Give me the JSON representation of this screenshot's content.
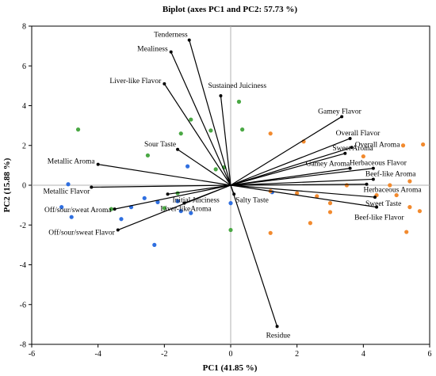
{
  "chart_data": {
    "type": "scatter",
    "title": "Biplot (axes PC1 and PC2: 57.73 %)",
    "xlabel": "PC1 (41.85 %)",
    "ylabel": "PC2 (15.88 %)",
    "xlim": [
      -6,
      6
    ],
    "ylim": [
      -8,
      8
    ],
    "xticks": [
      -6,
      -4,
      -2,
      0,
      2,
      4,
      6
    ],
    "yticks": [
      -8,
      -6,
      -4,
      -2,
      0,
      2,
      4,
      6,
      8
    ],
    "grid": false,
    "legend": "none",
    "colors": {
      "vector": "#000000",
      "blue": "#2f6fe0",
      "green": "#4aa844",
      "orange": "#f28a2e",
      "zero_line": "#b0b0b0"
    },
    "vectors": [
      {
        "label": "Tenderness",
        "x": -1.25,
        "y": 7.3
      },
      {
        "label": "Mealiness",
        "x": -1.8,
        "y": 6.7
      },
      {
        "label": "Liver-like Flavor",
        "x": -2.0,
        "y": 5.1
      },
      {
        "label": "Sustained Juiciness",
        "x": -0.3,
        "y": 4.5
      },
      {
        "label": "Sour Taste",
        "x": -1.6,
        "y": 1.8
      },
      {
        "label": "Metallic Aroma",
        "x": -4.0,
        "y": 1.05
      },
      {
        "label": "Metallic Flavor",
        "x": -4.2,
        "y": -0.1
      },
      {
        "label": "Initial Juiciness",
        "x": -1.9,
        "y": -0.45
      },
      {
        "label": "Liver-likeAroma",
        "x": -1.4,
        "y": -0.9
      },
      {
        "label": "Off/sour/sweat Aroma",
        "x": -3.5,
        "y": -1.2
      },
      {
        "label": "Off/sour/sweat Flavor",
        "x": -3.4,
        "y": -2.25
      },
      {
        "label": "Salty Taste",
        "x": 0.1,
        "y": -0.45
      },
      {
        "label": "Residue",
        "x": 1.4,
        "y": -7.1
      },
      {
        "label": "Gamey Flavor",
        "x": 3.35,
        "y": 3.45
      },
      {
        "label": "Overall Flavor",
        "x": 3.6,
        "y": 2.35
      },
      {
        "label": "Overall Aroma",
        "x": 3.65,
        "y": 1.9
      },
      {
        "label": "Sweet Aroma",
        "x": 3.45,
        "y": 1.6
      },
      {
        "label": "Gamey Aroma",
        "x": 3.6,
        "y": 0.85
      },
      {
        "label": "Herbaceous Flavor",
        "x": 4.3,
        "y": 0.85
      },
      {
        "label": "Beef-like Aroma",
        "x": 4.3,
        "y": 0.3
      },
      {
        "label": "Herbaceous Aroma",
        "x": 4.1,
        "y": 0.05
      },
      {
        "label": "Sweet Taste",
        "x": 4.35,
        "y": -0.6
      },
      {
        "label": "Beef-like Flavor",
        "x": 4.4,
        "y": -1.1
      }
    ],
    "series": [
      {
        "color": "blue",
        "points": [
          [
            -4.9,
            0.05
          ],
          [
            -5.1,
            -1.1
          ],
          [
            -4.8,
            -1.6
          ],
          [
            -3.3,
            -1.7
          ],
          [
            -3.0,
            -1.1
          ],
          [
            -2.6,
            -0.65
          ],
          [
            -2.2,
            -0.85
          ],
          [
            -1.6,
            -0.8
          ],
          [
            -1.5,
            -1.3
          ],
          [
            -1.2,
            -1.4
          ],
          [
            -1.3,
            0.95
          ],
          [
            -2.3,
            -3.0
          ],
          [
            0.0,
            -0.9
          ],
          [
            1.25,
            -0.35
          ]
        ]
      },
      {
        "color": "green",
        "points": [
          [
            -4.6,
            2.8
          ],
          [
            -2.5,
            1.5
          ],
          [
            -1.5,
            2.6
          ],
          [
            -1.2,
            3.3
          ],
          [
            -0.6,
            2.75
          ],
          [
            -0.45,
            0.8
          ],
          [
            -0.2,
            0.9
          ],
          [
            0.25,
            4.2
          ],
          [
            0.35,
            2.8
          ],
          [
            -1.6,
            -0.4
          ],
          [
            -2.0,
            -1.15
          ],
          [
            -3.6,
            -1.2
          ],
          [
            0.0,
            -2.25
          ]
        ]
      },
      {
        "color": "orange",
        "points": [
          [
            1.2,
            2.6
          ],
          [
            2.2,
            2.2
          ],
          [
            1.2,
            -0.3
          ],
          [
            2.0,
            -0.4
          ],
          [
            2.6,
            -0.55
          ],
          [
            3.0,
            -0.9
          ],
          [
            1.2,
            -2.4
          ],
          [
            2.4,
            -1.9
          ],
          [
            3.0,
            -1.35
          ],
          [
            3.5,
            0.0
          ],
          [
            4.0,
            1.45
          ],
          [
            4.4,
            -0.5
          ],
          [
            5.2,
            2.0
          ],
          [
            5.8,
            2.05
          ],
          [
            5.4,
            0.2
          ],
          [
            5.0,
            -0.5
          ],
          [
            5.4,
            -1.1
          ],
          [
            5.7,
            -1.3
          ],
          [
            5.3,
            -2.35
          ],
          [
            4.8,
            0.0
          ]
        ]
      }
    ]
  }
}
